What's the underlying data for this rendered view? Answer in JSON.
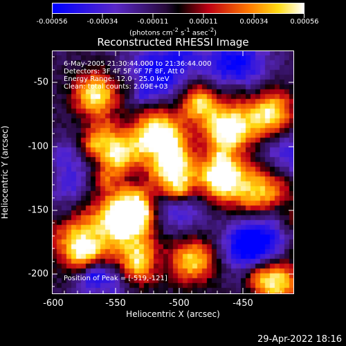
{
  "colorbar": {
    "tick_labels": [
      "-0.00056",
      "-0.00034",
      "-0.00011",
      "0.00011",
      "0.00034",
      "0.00056"
    ],
    "unit_html": "(photons cm<sup>-2</sup> s<sup>-1</sup> asec<sup>-2</sup>)",
    "unit_text": "(photons cm-2 s-1 asec-2)"
  },
  "title": "Reconstructed RHESSI Image",
  "info": {
    "time": "6-May-2005 21:30:44.000 to 21:36:44.000",
    "detectors": "Detectors: 3F 4F 5F 6F 7F 8F, Att 0",
    "energy": "Energy Range: 12.0 - 25.0 keV",
    "clean": "Clean:  total counts: 2.09E+03",
    "peak": "Position of Peak = [-519,-121]"
  },
  "axes": {
    "xlabel": "Heliocentric X (arcsec)",
    "ylabel": "Heliocentric Y (arcsec)",
    "xticks": [
      "-600",
      "-550",
      "-500",
      "-450"
    ],
    "yticks": [
      "-50",
      "-100",
      "-150",
      "-200"
    ]
  },
  "timestamp": "29-Apr-2022 18:16"
}
